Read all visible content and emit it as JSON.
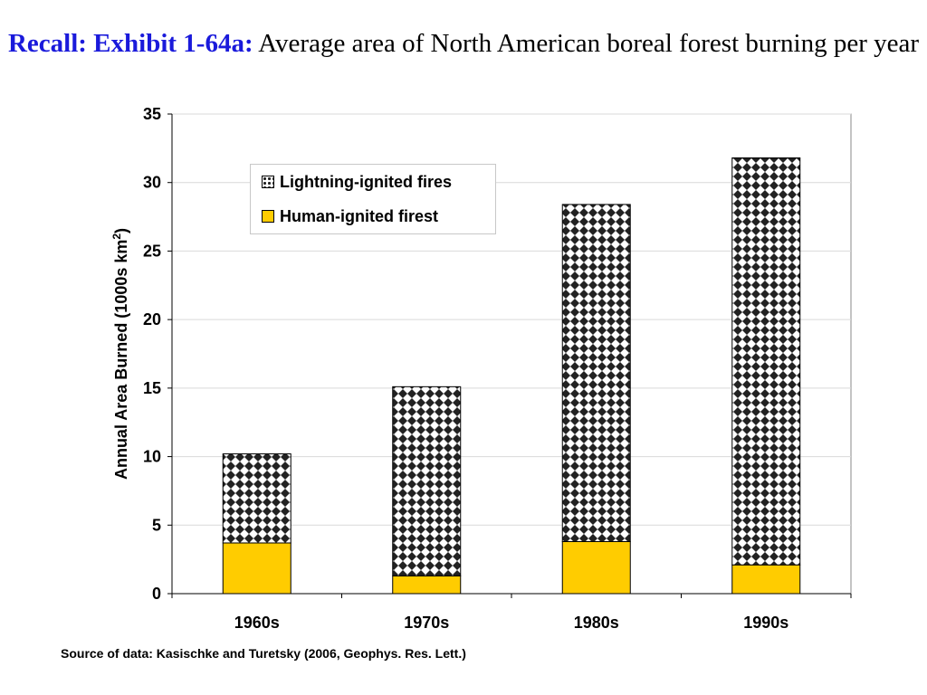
{
  "title": {
    "lead": "Recall: Exhibit 1-64a:",
    "rest": "Average area of North American boreal forest burning per year"
  },
  "source": "Source of data: Kasischke and Turetsky (2006, Geophys. Res. Lett.)",
  "colors": {
    "human": "#ffcc00",
    "lightning_dot": "#222222",
    "grid": "#d9d9d9",
    "title_lead": "#1a1adb"
  },
  "chart_data": {
    "type": "bar",
    "stacked": true,
    "categories": [
      "1960s",
      "1970s",
      "1980s",
      "1990s"
    ],
    "series": [
      {
        "name": "Human-ignited firest",
        "values": [
          3.7,
          1.3,
          3.8,
          2.1
        ]
      },
      {
        "name": "Lightning-ignited fires",
        "values": [
          6.5,
          13.8,
          24.6,
          29.7
        ]
      }
    ],
    "title": "",
    "xlabel": "",
    "ylabel": "Annual Area Burned (1000s km",
    "ylabel_sup": "2",
    "ylabel_end": ")",
    "ylim": [
      0,
      35
    ],
    "yticks": [
      0,
      5,
      10,
      15,
      20,
      25,
      30,
      35
    ],
    "grid": true,
    "legend_position": "top-left"
  }
}
